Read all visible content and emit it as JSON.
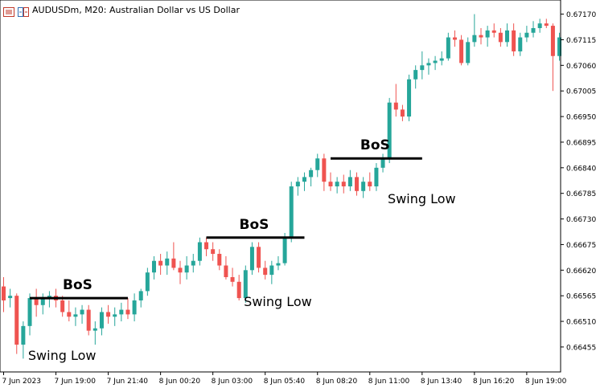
{
  "window": {
    "title": "AUDUSDm, M20:  Australian Dollar vs US Dollar",
    "icons": [
      "chart-menu-icon",
      "symbol-flag-icon"
    ]
  },
  "colors": {
    "bull": "#26a69a",
    "bear": "#ef5350",
    "axis": "#000000",
    "annotation_line": "#000000"
  },
  "chart_data": {
    "type": "candlestick",
    "symbol": "AUDUSDm",
    "timeframe": "M20",
    "description": "Australian Dollar vs US Dollar",
    "ylim": [
      0.6641,
      0.6719
    ],
    "y_ticks": [
      "0.67170",
      "0.67115",
      "0.67060",
      "0.67005",
      "0.66950",
      "0.66895",
      "0.66840",
      "0.66785",
      "0.66730",
      "0.66675",
      "0.66620",
      "0.66565",
      "0.66510",
      "0.66455"
    ],
    "x_ticks": [
      {
        "label": "7 Jun 2023",
        "index": 0
      },
      {
        "label": "7 Jun 19:00",
        "index": 8
      },
      {
        "label": "7 Jun 21:40",
        "index": 16
      },
      {
        "label": "8 Jun 00:20",
        "index": 24
      },
      {
        "label": "8 Jun 03:00",
        "index": 32
      },
      {
        "label": "8 Jun 05:40",
        "index": 40
      },
      {
        "label": "8 Jun 08:20",
        "index": 48
      },
      {
        "label": "8 Jun 11:00",
        "index": 56
      },
      {
        "label": "8 Jun 13:40",
        "index": 64
      },
      {
        "label": "8 Jun 16:20",
        "index": 72
      },
      {
        "label": "8 Jun 19:00",
        "index": 80
      }
    ],
    "candles": [
      {
        "o": 0.66585,
        "h": 0.66605,
        "l": 0.6653,
        "c": 0.66555
      },
      {
        "o": 0.6656,
        "h": 0.6658,
        "l": 0.6654,
        "c": 0.66565
      },
      {
        "o": 0.66565,
        "h": 0.6657,
        "l": 0.6644,
        "c": 0.6646
      },
      {
        "o": 0.6646,
        "h": 0.6651,
        "l": 0.6643,
        "c": 0.665
      },
      {
        "o": 0.665,
        "h": 0.6657,
        "l": 0.6648,
        "c": 0.6656
      },
      {
        "o": 0.6656,
        "h": 0.6658,
        "l": 0.6652,
        "c": 0.66545
      },
      {
        "o": 0.66545,
        "h": 0.6657,
        "l": 0.66525,
        "c": 0.6656
      },
      {
        "o": 0.6656,
        "h": 0.66575,
        "l": 0.6654,
        "c": 0.66565
      },
      {
        "o": 0.66565,
        "h": 0.6658,
        "l": 0.6654,
        "c": 0.66555
      },
      {
        "o": 0.66555,
        "h": 0.66565,
        "l": 0.6652,
        "c": 0.6653
      },
      {
        "o": 0.6653,
        "h": 0.66555,
        "l": 0.6651,
        "c": 0.6652
      },
      {
        "o": 0.6652,
        "h": 0.6654,
        "l": 0.665,
        "c": 0.66525
      },
      {
        "o": 0.66525,
        "h": 0.66545,
        "l": 0.66505,
        "c": 0.66535
      },
      {
        "o": 0.66535,
        "h": 0.66545,
        "l": 0.6648,
        "c": 0.6649
      },
      {
        "o": 0.6649,
        "h": 0.6651,
        "l": 0.6646,
        "c": 0.66495
      },
      {
        "o": 0.66495,
        "h": 0.6654,
        "l": 0.6648,
        "c": 0.6653
      },
      {
        "o": 0.6653,
        "h": 0.66545,
        "l": 0.66505,
        "c": 0.6652
      },
      {
        "o": 0.6652,
        "h": 0.6654,
        "l": 0.665,
        "c": 0.66525
      },
      {
        "o": 0.66525,
        "h": 0.6655,
        "l": 0.6651,
        "c": 0.66535
      },
      {
        "o": 0.66535,
        "h": 0.6656,
        "l": 0.66515,
        "c": 0.66525
      },
      {
        "o": 0.66525,
        "h": 0.6657,
        "l": 0.6651,
        "c": 0.66555
      },
      {
        "o": 0.66555,
        "h": 0.6658,
        "l": 0.6654,
        "c": 0.66575
      },
      {
        "o": 0.66575,
        "h": 0.66625,
        "l": 0.66565,
        "c": 0.66615
      },
      {
        "o": 0.66615,
        "h": 0.6665,
        "l": 0.666,
        "c": 0.6664
      },
      {
        "o": 0.6664,
        "h": 0.66655,
        "l": 0.6661,
        "c": 0.6663
      },
      {
        "o": 0.6663,
        "h": 0.6666,
        "l": 0.6661,
        "c": 0.66645
      },
      {
        "o": 0.66645,
        "h": 0.6668,
        "l": 0.6662,
        "c": 0.66625
      },
      {
        "o": 0.66625,
        "h": 0.6664,
        "l": 0.6659,
        "c": 0.66615
      },
      {
        "o": 0.66615,
        "h": 0.6665,
        "l": 0.666,
        "c": 0.6663
      },
      {
        "o": 0.6663,
        "h": 0.66655,
        "l": 0.66615,
        "c": 0.6664
      },
      {
        "o": 0.6664,
        "h": 0.6669,
        "l": 0.6663,
        "c": 0.6668
      },
      {
        "o": 0.6668,
        "h": 0.6669,
        "l": 0.6665,
        "c": 0.66665
      },
      {
        "o": 0.66665,
        "h": 0.6668,
        "l": 0.6664,
        "c": 0.66655
      },
      {
        "o": 0.66655,
        "h": 0.66665,
        "l": 0.6662,
        "c": 0.6663
      },
      {
        "o": 0.6663,
        "h": 0.6665,
        "l": 0.666,
        "c": 0.66605
      },
      {
        "o": 0.66605,
        "h": 0.66625,
        "l": 0.66585,
        "c": 0.66595
      },
      {
        "o": 0.66595,
        "h": 0.6661,
        "l": 0.66555,
        "c": 0.6656
      },
      {
        "o": 0.6656,
        "h": 0.6663,
        "l": 0.6655,
        "c": 0.6662
      },
      {
        "o": 0.6662,
        "h": 0.6668,
        "l": 0.6661,
        "c": 0.6667
      },
      {
        "o": 0.6667,
        "h": 0.6668,
        "l": 0.66615,
        "c": 0.66625
      },
      {
        "o": 0.66625,
        "h": 0.6664,
        "l": 0.666,
        "c": 0.6661
      },
      {
        "o": 0.6661,
        "h": 0.6664,
        "l": 0.6659,
        "c": 0.6663
      },
      {
        "o": 0.6663,
        "h": 0.6665,
        "l": 0.6662,
        "c": 0.66635
      },
      {
        "o": 0.66635,
        "h": 0.667,
        "l": 0.6663,
        "c": 0.6669
      },
      {
        "o": 0.6669,
        "h": 0.6681,
        "l": 0.6668,
        "c": 0.668
      },
      {
        "o": 0.668,
        "h": 0.6682,
        "l": 0.6678,
        "c": 0.6681
      },
      {
        "o": 0.6681,
        "h": 0.6683,
        "l": 0.6679,
        "c": 0.6682
      },
      {
        "o": 0.6682,
        "h": 0.6684,
        "l": 0.668,
        "c": 0.66835
      },
      {
        "o": 0.66835,
        "h": 0.6687,
        "l": 0.6682,
        "c": 0.6686
      },
      {
        "o": 0.6686,
        "h": 0.6687,
        "l": 0.6679,
        "c": 0.6681
      },
      {
        "o": 0.6681,
        "h": 0.6683,
        "l": 0.6679,
        "c": 0.668
      },
      {
        "o": 0.668,
        "h": 0.6682,
        "l": 0.66785,
        "c": 0.6681
      },
      {
        "o": 0.6681,
        "h": 0.66825,
        "l": 0.66785,
        "c": 0.668
      },
      {
        "o": 0.668,
        "h": 0.66835,
        "l": 0.6679,
        "c": 0.6682
      },
      {
        "o": 0.6682,
        "h": 0.6683,
        "l": 0.6678,
        "c": 0.6679
      },
      {
        "o": 0.6679,
        "h": 0.6682,
        "l": 0.66775,
        "c": 0.6681
      },
      {
        "o": 0.6681,
        "h": 0.6683,
        "l": 0.6679,
        "c": 0.668
      },
      {
        "o": 0.668,
        "h": 0.6685,
        "l": 0.6679,
        "c": 0.6684
      },
      {
        "o": 0.6684,
        "h": 0.6687,
        "l": 0.6683,
        "c": 0.6686
      },
      {
        "o": 0.6686,
        "h": 0.6699,
        "l": 0.6685,
        "c": 0.6698
      },
      {
        "o": 0.6698,
        "h": 0.6702,
        "l": 0.6695,
        "c": 0.66965
      },
      {
        "o": 0.66965,
        "h": 0.66975,
        "l": 0.6694,
        "c": 0.6695
      },
      {
        "o": 0.6695,
        "h": 0.6704,
        "l": 0.6694,
        "c": 0.6703
      },
      {
        "o": 0.6703,
        "h": 0.6706,
        "l": 0.6701,
        "c": 0.6705
      },
      {
        "o": 0.6705,
        "h": 0.6709,
        "l": 0.6703,
        "c": 0.6706
      },
      {
        "o": 0.6706,
        "h": 0.67075,
        "l": 0.6704,
        "c": 0.67065
      },
      {
        "o": 0.67065,
        "h": 0.6708,
        "l": 0.6705,
        "c": 0.6707
      },
      {
        "o": 0.6707,
        "h": 0.6709,
        "l": 0.6706,
        "c": 0.67075
      },
      {
        "o": 0.67075,
        "h": 0.6713,
        "l": 0.6707,
        "c": 0.6712
      },
      {
        "o": 0.6712,
        "h": 0.67135,
        "l": 0.671,
        "c": 0.67115
      },
      {
        "o": 0.67115,
        "h": 0.67125,
        "l": 0.6706,
        "c": 0.67065
      },
      {
        "o": 0.67065,
        "h": 0.6712,
        "l": 0.6706,
        "c": 0.6711
      },
      {
        "o": 0.6711,
        "h": 0.6717,
        "l": 0.671,
        "c": 0.67125
      },
      {
        "o": 0.67125,
        "h": 0.6714,
        "l": 0.67105,
        "c": 0.6712
      },
      {
        "o": 0.6712,
        "h": 0.67145,
        "l": 0.671,
        "c": 0.67135
      },
      {
        "o": 0.67135,
        "h": 0.6715,
        "l": 0.6712,
        "c": 0.6713
      },
      {
        "o": 0.6713,
        "h": 0.6714,
        "l": 0.671,
        "c": 0.6711
      },
      {
        "o": 0.6711,
        "h": 0.6715,
        "l": 0.671,
        "c": 0.67135
      },
      {
        "o": 0.67135,
        "h": 0.6715,
        "l": 0.6708,
        "c": 0.6709
      },
      {
        "o": 0.6709,
        "h": 0.6713,
        "l": 0.6708,
        "c": 0.6712
      },
      {
        "o": 0.6712,
        "h": 0.67145,
        "l": 0.6711,
        "c": 0.6713
      },
      {
        "o": 0.6713,
        "h": 0.67155,
        "l": 0.6712,
        "c": 0.6714
      },
      {
        "o": 0.6714,
        "h": 0.6716,
        "l": 0.6713,
        "c": 0.6715
      },
      {
        "o": 0.6715,
        "h": 0.6716,
        "l": 0.6714,
        "c": 0.67145
      },
      {
        "o": 0.67145,
        "h": 0.6715,
        "l": 0.67005,
        "c": 0.6708
      },
      {
        "o": 0.6708,
        "h": 0.6713,
        "l": 0.6707,
        "c": 0.6712
      }
    ],
    "annotations": [
      {
        "type": "hline",
        "label": "BoS",
        "price": 0.6656,
        "from_index": 4,
        "to_index": 19
      },
      {
        "type": "hline",
        "label": "BoS",
        "price": 0.6669,
        "from_index": 31,
        "to_index": 46
      },
      {
        "type": "hline",
        "label": "BoS",
        "price": 0.6686,
        "from_index": 50,
        "to_index": 64
      },
      {
        "type": "text",
        "label": "Swing Low",
        "price": 0.6644,
        "index": 3
      },
      {
        "type": "text",
        "label": "Swing Low",
        "price": 0.66555,
        "index": 36
      },
      {
        "type": "text",
        "label": "Swing Low",
        "price": 0.66775,
        "index": 58
      }
    ]
  }
}
